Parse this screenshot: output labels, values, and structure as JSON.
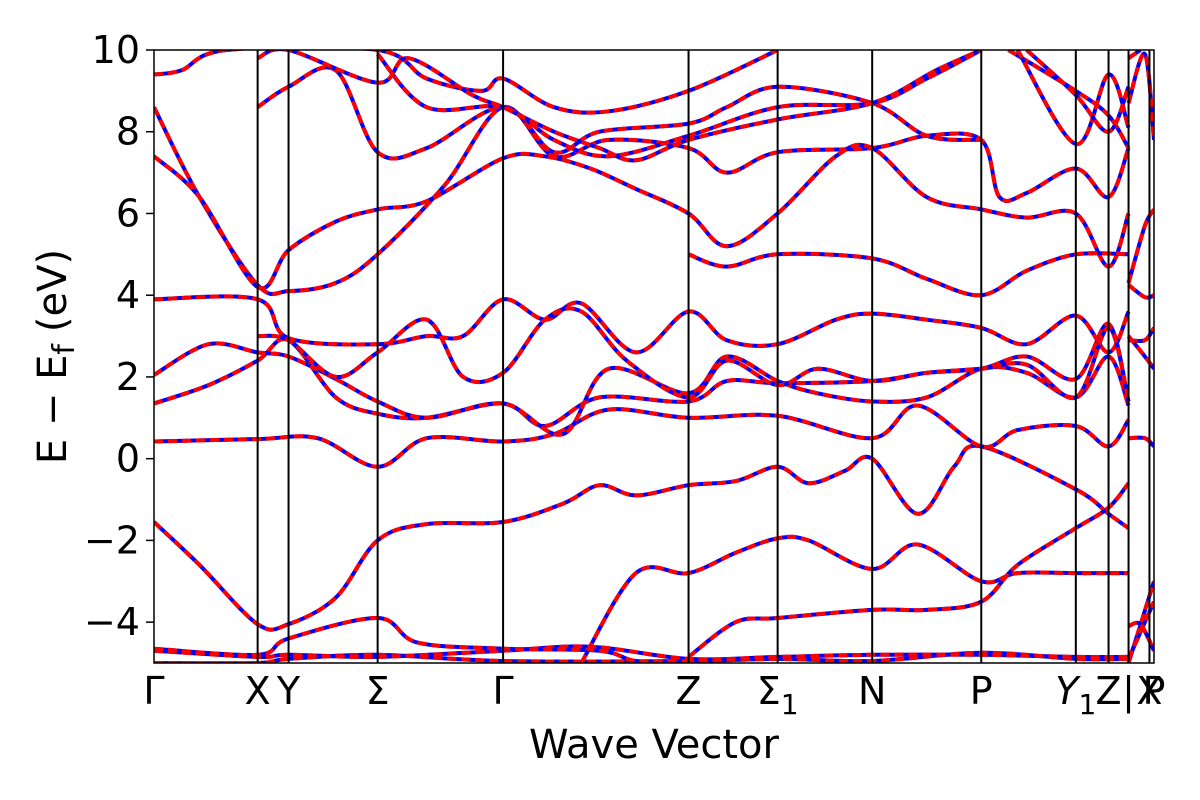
{
  "chart_data": {
    "type": "line",
    "title": "",
    "xlabel": "Wave Vector",
    "ylabel": {
      "main": "E − E",
      "sub": "f",
      "unit": "(eV)"
    },
    "ylim": [
      -5,
      10
    ],
    "yticks": [
      {
        "value": -4,
        "label": "−4"
      },
      {
        "value": -2,
        "label": "−2"
      },
      {
        "value": 0,
        "label": "0"
      },
      {
        "value": 2,
        "label": "2"
      },
      {
        "value": 4,
        "label": "4"
      },
      {
        "value": 6,
        "label": "6"
      },
      {
        "value": 8,
        "label": "8"
      },
      {
        "value": 10,
        "label": "10"
      }
    ],
    "xlim": [
      0,
      11
    ],
    "kpoints": [
      {
        "x": 0,
        "label": "Γ"
      },
      {
        "x": 1.14,
        "label": "X"
      },
      {
        "x": 1.48,
        "label": "Y"
      },
      {
        "x": 2.46,
        "label": "Σ"
      },
      {
        "x": 3.84,
        "label": "Γ"
      },
      {
        "x": 5.88,
        "label": "Z"
      },
      {
        "x": 6.86,
        "label": "Σ",
        "sub": "1"
      },
      {
        "x": 7.9,
        "label": "N"
      },
      {
        "x": 9.1,
        "label": "P"
      },
      {
        "x": 10.14,
        "label": "Y",
        "sub": "1"
      },
      {
        "x": 10.5,
        "label": "Z"
      },
      {
        "x": 10.72,
        "label": "|"
      },
      {
        "x": 10.95,
        "label": "X"
      },
      {
        "x": 11.0,
        "label": "P"
      }
    ],
    "colors": {
      "series_a": "#ff0000",
      "series_b": "#0000ff",
      "vlines": "#000000"
    },
    "bands": [
      [
        [
          0,
          -5.0
        ],
        [
          1.14,
          -5.0
        ],
        [
          1.48,
          -4.9
        ],
        [
          2.46,
          -4.8
        ],
        [
          3.84,
          -4.95
        ],
        [
          5.88,
          -4.95
        ],
        [
          6.86,
          -4.9
        ],
        [
          7.9,
          -4.95
        ],
        [
          9.1,
          -4.75
        ],
        [
          10.14,
          -4.9
        ],
        [
          10.72,
          -4.9
        ]
      ],
      [
        [
          0,
          -4.7
        ],
        [
          1.14,
          -4.85
        ],
        [
          1.48,
          -4.8
        ],
        [
          2.46,
          -4.85
        ],
        [
          3.84,
          -4.7
        ],
        [
          4.8,
          -4.6
        ],
        [
          5.88,
          -4.9
        ],
        [
          6.86,
          -4.85
        ],
        [
          7.9,
          -4.8
        ],
        [
          9.1,
          -4.8
        ],
        [
          10.14,
          -4.85
        ],
        [
          10.72,
          -4.85
        ]
      ],
      [
        [
          0,
          -4.65
        ],
        [
          1.14,
          -4.8
        ],
        [
          1.48,
          -4.4
        ],
        [
          2.46,
          -3.9
        ],
        [
          2.9,
          -4.5
        ],
        [
          3.84,
          -4.65
        ],
        [
          4.9,
          -4.7
        ],
        [
          5.3,
          -4.95
        ],
        [
          5.88,
          -4.95
        ]
      ],
      [
        [
          0,
          -1.55
        ],
        [
          0.5,
          -2.6
        ],
        [
          1.14,
          -4.05
        ],
        [
          1.48,
          -4.05
        ],
        [
          2.0,
          -3.4
        ],
        [
          2.46,
          -2.0
        ],
        [
          3.0,
          -1.6
        ],
        [
          3.84,
          -1.55
        ],
        [
          4.5,
          -1.1
        ],
        [
          4.9,
          -0.65
        ],
        [
          5.3,
          -0.9
        ],
        [
          5.88,
          -0.65
        ],
        [
          6.4,
          -0.55
        ],
        [
          6.86,
          -0.2
        ],
        [
          7.2,
          -0.6
        ],
        [
          7.6,
          -0.3
        ],
        [
          7.9,
          0.0
        ],
        [
          8.4,
          -1.35
        ],
        [
          8.8,
          -0.2
        ],
        [
          9.1,
          0.3
        ],
        [
          10.14,
          -0.75
        ],
        [
          10.5,
          -1.35
        ],
        [
          10.72,
          -1.7
        ]
      ],
      [
        [
          4.7,
          -5.0
        ],
        [
          5.3,
          -2.8
        ],
        [
          5.88,
          -2.8
        ],
        [
          6.4,
          -2.3
        ],
        [
          6.86,
          -1.95
        ],
        [
          7.2,
          -2.0
        ],
        [
          7.9,
          -2.7
        ],
        [
          8.4,
          -2.1
        ],
        [
          9.1,
          -3.0
        ],
        [
          9.5,
          -2.8
        ],
        [
          10.14,
          -2.8
        ],
        [
          10.72,
          -2.8
        ]
      ],
      [
        [
          5.88,
          -4.85
        ],
        [
          6.4,
          -4.0
        ],
        [
          6.86,
          -3.9
        ],
        [
          7.9,
          -3.7
        ],
        [
          8.5,
          -3.7
        ],
        [
          9.1,
          -3.5
        ],
        [
          9.5,
          -2.6
        ],
        [
          10.14,
          -1.7
        ],
        [
          10.5,
          -1.2
        ],
        [
          10.72,
          -0.6
        ]
      ],
      [
        [
          0,
          0.42
        ],
        [
          1.14,
          0.48
        ],
        [
          1.8,
          0.5
        ],
        [
          2.46,
          -0.2
        ],
        [
          3.0,
          0.5
        ],
        [
          3.84,
          0.42
        ],
        [
          4.4,
          0.6
        ],
        [
          5.0,
          1.2
        ],
        [
          5.88,
          1.0
        ],
        [
          6.86,
          1.05
        ],
        [
          7.9,
          0.5
        ],
        [
          8.4,
          1.3
        ],
        [
          9.1,
          0.3
        ],
        [
          9.5,
          0.7
        ],
        [
          10.14,
          0.8
        ],
        [
          10.5,
          0.3
        ],
        [
          10.72,
          0.95
        ]
      ],
      [
        [
          0,
          1.35
        ],
        [
          0.6,
          1.8
        ],
        [
          1.14,
          2.4
        ],
        [
          1.48,
          2.9
        ],
        [
          2.0,
          1.5
        ],
        [
          2.46,
          1.1
        ],
        [
          3.0,
          1.0
        ],
        [
          3.84,
          1.35
        ],
        [
          4.3,
          0.8
        ],
        [
          4.9,
          1.5
        ],
        [
          5.88,
          1.4
        ],
        [
          6.3,
          1.9
        ],
        [
          6.86,
          1.85
        ],
        [
          7.9,
          1.9
        ],
        [
          8.5,
          2.1
        ],
        [
          9.1,
          2.2
        ],
        [
          9.6,
          2.5
        ],
        [
          10.14,
          1.95
        ],
        [
          10.5,
          3.3
        ],
        [
          10.72,
          1.4
        ]
      ],
      [
        [
          0,
          2.05
        ],
        [
          0.6,
          2.8
        ],
        [
          1.14,
          2.6
        ],
        [
          1.48,
          2.5
        ],
        [
          2.0,
          1.95
        ],
        [
          2.46,
          1.4
        ],
        [
          3.0,
          1.0
        ],
        [
          3.84,
          1.35
        ],
        [
          4.5,
          0.6
        ],
        [
          5.0,
          2.2
        ],
        [
          5.88,
          1.6
        ],
        [
          6.3,
          2.5
        ],
        [
          6.86,
          1.9
        ],
        [
          7.3,
          1.6
        ],
        [
          7.9,
          1.4
        ],
        [
          8.5,
          1.5
        ],
        [
          9.1,
          2.2
        ],
        [
          9.6,
          2.1
        ],
        [
          10.14,
          1.5
        ],
        [
          10.5,
          2.5
        ],
        [
          10.72,
          1.3
        ]
      ],
      [
        [
          0,
          3.9
        ],
        [
          1.14,
          3.9
        ],
        [
          1.48,
          2.95
        ],
        [
          2.46,
          2.8
        ],
        [
          3.0,
          3.0
        ],
        [
          3.4,
          3.0
        ],
        [
          3.84,
          3.9
        ],
        [
          4.3,
          3.4
        ],
        [
          4.7,
          3.8
        ],
        [
          5.3,
          2.6
        ],
        [
          5.88,
          3.6
        ],
        [
          6.3,
          2.9
        ],
        [
          6.86,
          2.8
        ],
        [
          7.5,
          3.4
        ],
        [
          7.9,
          3.55
        ],
        [
          8.5,
          3.4
        ],
        [
          9.1,
          3.2
        ],
        [
          9.6,
          2.8
        ],
        [
          10.14,
          3.5
        ],
        [
          10.5,
          2.6
        ],
        [
          10.72,
          3.6
        ]
      ],
      [
        [
          1.14,
          3.0
        ],
        [
          1.48,
          2.9
        ],
        [
          2.0,
          2.0
        ],
        [
          2.46,
          2.6
        ],
        [
          3.0,
          3.4
        ],
        [
          3.4,
          2.0
        ],
        [
          3.84,
          2.1
        ],
        [
          4.3,
          3.4
        ],
        [
          4.7,
          3.6
        ],
        [
          5.2,
          2.4
        ],
        [
          5.88,
          1.5
        ],
        [
          6.3,
          2.4
        ],
        [
          6.86,
          1.8
        ],
        [
          7.3,
          2.2
        ],
        [
          7.9,
          1.9
        ],
        [
          8.5,
          2.1
        ],
        [
          9.1,
          2.2
        ],
        [
          9.6,
          2.3
        ],
        [
          10.14,
          1.5
        ],
        [
          10.5,
          3.2
        ],
        [
          10.72,
          1.4
        ]
      ],
      [
        [
          0,
          8.6
        ],
        [
          0.5,
          6.4
        ],
        [
          1.14,
          4.25
        ],
        [
          1.48,
          4.1
        ],
        [
          2.0,
          4.3
        ],
        [
          2.46,
          5.0
        ],
        [
          3.2,
          6.7
        ],
        [
          3.84,
          8.6
        ],
        [
          4.4,
          7.4
        ],
        [
          5.0,
          7.8
        ],
        [
          5.88,
          7.6
        ],
        [
          6.3,
          7.0
        ],
        [
          6.86,
          7.5
        ],
        [
          7.9,
          7.6
        ],
        [
          8.5,
          7.9
        ],
        [
          9.1,
          7.8
        ],
        [
          9.3,
          6.4
        ],
        [
          9.6,
          6.5
        ],
        [
          10.14,
          7.1
        ],
        [
          10.5,
          6.4
        ],
        [
          10.72,
          7.6
        ]
      ],
      [
        [
          0,
          7.4
        ],
        [
          0.5,
          6.4
        ],
        [
          1.14,
          4.2
        ],
        [
          1.48,
          5.1
        ],
        [
          2.0,
          5.8
        ],
        [
          2.46,
          6.1
        ],
        [
          3.0,
          6.3
        ],
        [
          3.84,
          7.35
        ],
        [
          4.3,
          7.4
        ],
        [
          4.8,
          7.1
        ],
        [
          5.3,
          6.6
        ],
        [
          5.88,
          6.0
        ],
        [
          6.3,
          5.2
        ],
        [
          6.86,
          6.0
        ],
        [
          7.5,
          7.4
        ],
        [
          7.9,
          7.6
        ],
        [
          8.5,
          6.4
        ],
        [
          9.1,
          6.1
        ],
        [
          9.6,
          5.9
        ],
        [
          10.14,
          6.0
        ],
        [
          10.5,
          4.7
        ],
        [
          10.72,
          6.0
        ]
      ],
      [
        [
          1.14,
          8.6
        ],
        [
          1.48,
          9.1
        ],
        [
          2.0,
          9.5
        ],
        [
          2.46,
          7.5
        ],
        [
          3.0,
          7.6
        ],
        [
          3.84,
          8.6
        ],
        [
          4.4,
          7.5
        ],
        [
          4.9,
          8.0
        ],
        [
          5.88,
          8.2
        ],
        [
          6.3,
          8.6
        ],
        [
          6.86,
          9.1
        ],
        [
          7.9,
          8.7
        ],
        [
          8.5,
          7.9
        ],
        [
          9.1,
          7.8
        ]
      ],
      [
        [
          0,
          9.4
        ],
        [
          0.3,
          9.5
        ],
        [
          0.8,
          10.0
        ],
        [
          2.46,
          10.0
        ],
        [
          3.0,
          9.3
        ],
        [
          3.6,
          9.0
        ],
        [
          3.84,
          9.3
        ],
        [
          4.4,
          8.6
        ],
        [
          5.0,
          8.5
        ],
        [
          5.88,
          9.0
        ],
        [
          6.86,
          10.0
        ]
      ],
      [
        [
          2.46,
          9.9
        ],
        [
          3.0,
          8.6
        ],
        [
          3.84,
          8.6
        ],
        [
          4.4,
          7.8
        ],
        [
          5.0,
          7.4
        ],
        [
          5.88,
          7.9
        ],
        [
          6.86,
          8.6
        ],
        [
          7.9,
          8.7
        ],
        [
          8.5,
          9.3
        ],
        [
          9.1,
          10.0
        ]
      ],
      [
        [
          1.14,
          9.8
        ],
        [
          1.48,
          10.0
        ],
        [
          2.46,
          9.2
        ],
        [
          2.8,
          9.8
        ],
        [
          3.5,
          8.9
        ],
        [
          3.84,
          8.6
        ],
        [
          4.4,
          8.0
        ],
        [
          4.9,
          7.6
        ],
        [
          5.3,
          7.3
        ],
        [
          5.88,
          7.8
        ],
        [
          6.86,
          8.3
        ],
        [
          7.9,
          8.7
        ],
        [
          8.6,
          9.5
        ],
        [
          9.1,
          10.0
        ]
      ],
      [
        [
          5.88,
          5.0
        ],
        [
          6.3,
          4.7
        ],
        [
          6.86,
          5.0
        ],
        [
          7.9,
          4.9
        ],
        [
          8.5,
          4.4
        ],
        [
          9.1,
          4.0
        ],
        [
          9.6,
          4.6
        ],
        [
          10.14,
          5.0
        ],
        [
          10.72,
          5.0
        ]
      ],
      [
        [
          9.4,
          10.0
        ],
        [
          10.14,
          9.0
        ],
        [
          10.5,
          8.4
        ],
        [
          10.72,
          7.6
        ]
      ],
      [
        [
          9.5,
          10.0
        ],
        [
          10.14,
          7.7
        ],
        [
          10.5,
          9.4
        ],
        [
          10.72,
          8.1
        ]
      ],
      [
        [
          9.6,
          10.0
        ],
        [
          10.14,
          8.9
        ],
        [
          10.5,
          8.0
        ],
        [
          10.72,
          9.1
        ]
      ],
      [
        [
          10.72,
          -5.0
        ],
        [
          11.0,
          -3.0
        ]
      ],
      [
        [
          10.72,
          -4.9
        ],
        [
          11.0,
          -3.5
        ]
      ],
      [
        [
          10.72,
          -4.1
        ],
        [
          10.85,
          -4.05
        ],
        [
          11.0,
          -4.7
        ]
      ],
      [
        [
          10.72,
          0.5
        ],
        [
          10.9,
          0.5
        ],
        [
          11.0,
          0.3
        ]
      ],
      [
        [
          10.72,
          2.9
        ],
        [
          10.9,
          2.9
        ],
        [
          11.0,
          3.2
        ]
      ],
      [
        [
          10.72,
          3.0
        ],
        [
          10.9,
          2.5
        ],
        [
          11.0,
          2.2
        ]
      ],
      [
        [
          10.72,
          4.25
        ],
        [
          10.9,
          3.95
        ],
        [
          11.0,
          4.0
        ]
      ],
      [
        [
          10.72,
          4.3
        ],
        [
          10.9,
          5.7
        ],
        [
          11.0,
          6.1
        ]
      ],
      [
        [
          10.72,
          8.7
        ],
        [
          10.9,
          9.9
        ],
        [
          11.0,
          7.8
        ]
      ],
      [
        [
          10.72,
          9.8
        ],
        [
          10.85,
          10.0
        ]
      ]
    ]
  }
}
